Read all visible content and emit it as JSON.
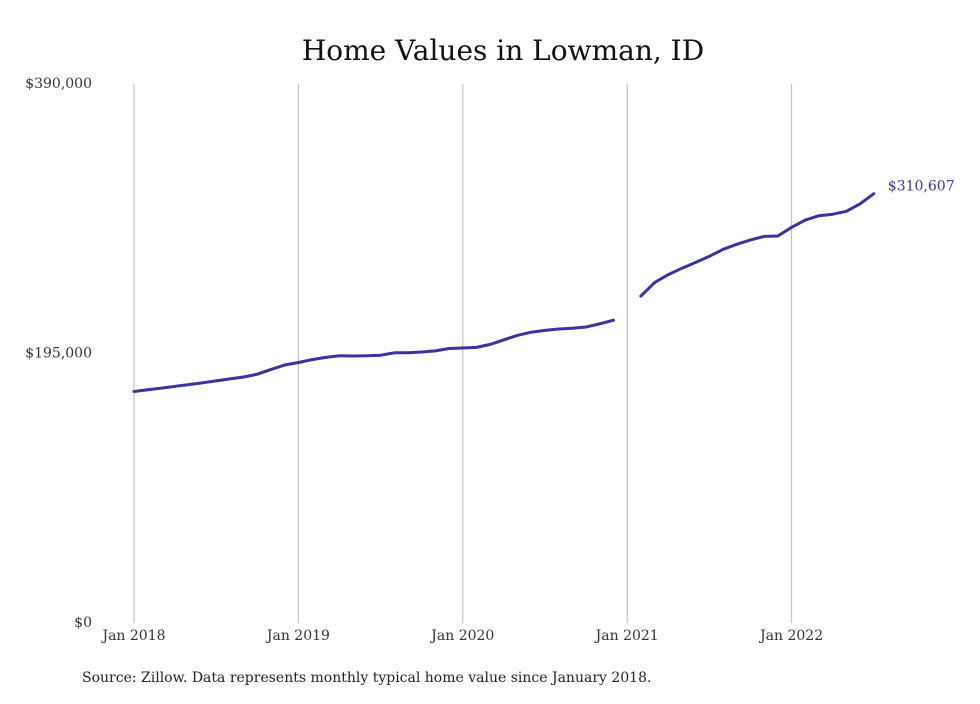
{
  "chart_data": {
    "type": "line",
    "title": "Home Values in Lowman, ID",
    "xlabel": "",
    "ylabel": "",
    "ylim": [
      0,
      390000
    ],
    "y_ticks": [
      {
        "value": 0,
        "label": "$0"
      },
      {
        "value": 195000,
        "label": "$195,000"
      },
      {
        "value": 390000,
        "label": "$390,000"
      }
    ],
    "x_ticks": [
      {
        "value": "2018-01",
        "label": "Jan 2018"
      },
      {
        "value": "2019-01",
        "label": "Jan 2019"
      },
      {
        "value": "2020-01",
        "label": "Jan 2020"
      },
      {
        "value": "2021-01",
        "label": "Jan 2021"
      },
      {
        "value": "2022-01",
        "label": "Jan 2022"
      }
    ],
    "grid": "vertical lines at each January",
    "end_label": "$310,607",
    "line_color": "#3a32a0",
    "series": [
      {
        "segments": [
          {
            "x": [
              "2018-01",
              "2018-02",
              "2018-03",
              "2018-04",
              "2018-05",
              "2018-06",
              "2018-07",
              "2018-08",
              "2018-09",
              "2018-10",
              "2018-11",
              "2018-12",
              "2019-01",
              "2019-02",
              "2019-03",
              "2019-04",
              "2019-05",
              "2019-06",
              "2019-07",
              "2019-08",
              "2019-09",
              "2019-10",
              "2019-11",
              "2019-12",
              "2020-01",
              "2020-02",
              "2020-03",
              "2020-04",
              "2020-05",
              "2020-06",
              "2020-07",
              "2020-08",
              "2020-09",
              "2020-10",
              "2020-11",
              "2020-12"
            ],
            "y": [
              167500,
              168700,
              170000,
              171300,
              172500,
              173800,
              175200,
              176600,
              178000,
              180000,
              183500,
              186700,
              188500,
              190600,
              192200,
              193300,
              193200,
              193300,
              193800,
              195500,
              195600,
              196100,
              196900,
              198600,
              199000,
              199400,
              201600,
              204900,
              208200,
              210400,
              211700,
              212700,
              213200,
              214200,
              216500,
              219100
            ]
          },
          {
            "x": [
              "2021-02",
              "2021-03",
              "2021-04",
              "2021-05",
              "2021-06",
              "2021-07",
              "2021-08",
              "2021-09",
              "2021-10",
              "2021-11",
              "2021-12",
              "2022-01",
              "2022-02",
              "2022-03",
              "2022-04",
              "2022-05",
              "2022-06",
              "2022-07"
            ],
            "y": [
              236500,
              246300,
              252100,
              256700,
              260900,
              265300,
              270400,
              274000,
              277200,
              279700,
              280000,
              286300,
              291500,
              294700,
              295800,
              297900,
              303300,
              310607
            ]
          }
        ]
      }
    ]
  },
  "source_note": "Source: Zillow. Data represents monthly typical home value since January 2018."
}
